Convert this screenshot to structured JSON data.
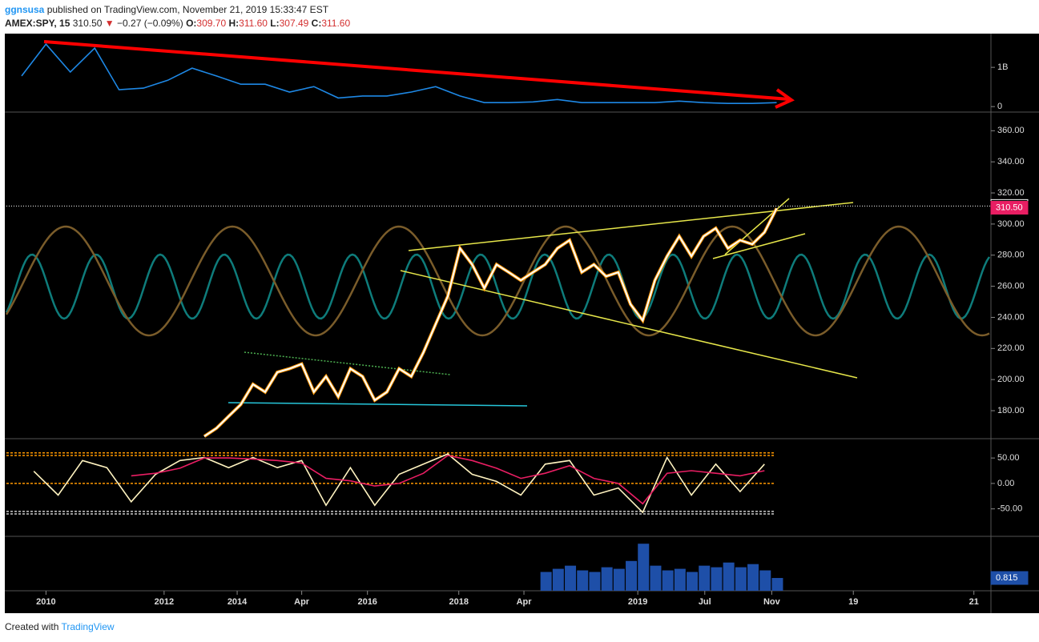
{
  "header": {
    "user": "ggnsusa",
    "published": "published on TradingView.com, November 21, 2019 15:33:47 EST",
    "symbol": "AMEX:SPY, 15",
    "last": "310.50",
    "arrow": "▼",
    "change": "−0.27 (−0.09%)",
    "o_label": "O:",
    "o": "309.70",
    "h_label": "H:",
    "h": "311.60",
    "l_label": "L:",
    "l": "307.49",
    "c_label": "C:",
    "c": "311.60"
  },
  "footer": {
    "created": "Created with",
    "brand": "TradingView"
  },
  "chart_data": [
    {
      "type": "line",
      "series": [
        {
          "color": "#ffffff",
          "values": [
            163.5,
            168.7,
            176.4,
            184,
            197,
            192,
            204.7,
            207,
            210,
            192,
            202,
            189,
            207,
            202,
            186.7,
            192,
            207,
            202,
            217.5,
            235.6,
            253.6,
            284.4,
            274,
            258.7,
            274,
            269,
            263.8,
            269,
            274,
            284.4,
            289.6,
            269,
            274,
            266.4,
            269,
            248.4,
            238,
            263.8,
            279.3,
            292.1,
            279.3,
            292.1,
            297.3,
            284.4,
            289.6,
            287,
            294.7,
            310.1
          ]
        }
      ],
      "ylim": [
        162,
        372
      ],
      "yticks": [
        {
          "value": 180,
          "label": "180.00"
        },
        {
          "value": 200,
          "label": "200.00"
        },
        {
          "value": 220,
          "label": "220.00"
        },
        {
          "value": 240,
          "label": "240.00"
        },
        {
          "value": 260,
          "label": "260.00"
        },
        {
          "value": 280,
          "label": "280.00"
        },
        {
          "value": 300,
          "label": "300.00"
        },
        {
          "value": 320,
          "label": "320.00"
        },
        {
          "value": 340,
          "label": "340.00"
        },
        {
          "value": 360,
          "label": "360.00"
        }
      ],
      "xlim": [
        -16.25,
        64.6
      ],
      "xticks": [
        {
          "value": -13,
          "label": "2010"
        },
        {
          "value": -3.3,
          "label": "2012"
        },
        {
          "value": 2.7,
          "label": "2014"
        },
        {
          "value": 8,
          "label": "Apr"
        },
        {
          "value": 13.4,
          "label": "2016"
        },
        {
          "value": 20.9,
          "label": "2018"
        },
        {
          "value": 26.25,
          "label": "Apr"
        },
        {
          "value": 35.6,
          "label": "2019"
        },
        {
          "value": 41.1,
          "label": "Jul"
        },
        {
          "value": 46.6,
          "label": "Nov"
        },
        {
          "value": 53.3,
          "label": "19"
        },
        {
          "value": 63.2,
          "label": "21"
        }
      ],
      "price_tags": [
        {
          "value": 311.6,
          "label": "311.60",
          "color": "#ffffff"
        },
        {
          "value": 310.5,
          "label": "310.50",
          "color": "#e91e63"
        }
      ]
    },
    {
      "type": "line",
      "x": [
        -15,
        -13,
        -11,
        -9,
        -7,
        -5,
        -3,
        -1,
        1,
        3,
        5,
        7,
        9,
        11,
        13,
        15,
        17,
        19,
        21,
        23,
        25,
        27,
        29,
        31,
        33,
        35,
        37,
        39,
        41,
        43,
        45,
        47
      ],
      "series": [
        {
          "color": "#1e88e5",
          "values": [
            780000000,
            1590000000,
            880000000,
            1490000000,
            430000000,
            470000000,
            670000000,
            980000000,
            780000000,
            570000000,
            570000000,
            370000000,
            510000000,
            220000000,
            270000000,
            270000000,
            370000000,
            510000000,
            270000000,
            100000000,
            100000000,
            120000000,
            180000000,
            100000000,
            100000000,
            100000000,
            100000000,
            140000000,
            100000000,
            80000000,
            80000000,
            100000000
          ]
        }
      ],
      "ylim": [
        -140000000,
        1860000000
      ],
      "yticks": [
        {
          "value": 0,
          "label": "0"
        },
        {
          "value": 1000000000,
          "label": "1B"
        }
      ]
    },
    {
      "type": "line",
      "x": [
        -14,
        -12,
        -10,
        -8,
        -6,
        -4,
        -2,
        0,
        2,
        4,
        6,
        8,
        10,
        12,
        14,
        16,
        18,
        20,
        22,
        24,
        26,
        28,
        30,
        32,
        34,
        36,
        38,
        40,
        42,
        44,
        46
      ],
      "series": [
        {
          "color": "#fff3c0",
          "values": [
            24,
            -23,
            45,
            31,
            -36,
            18,
            45,
            51,
            31,
            51,
            31,
            45,
            -43,
            31,
            -43,
            18,
            38,
            58,
            18,
            4,
            -23,
            38,
            45,
            -23,
            -9,
            -57,
            51,
            -23,
            38,
            -16,
            38
          ]
        },
        {
          "color": "#e91e63",
          "values": [
            null,
            null,
            null,
            null,
            15,
            20,
            30,
            50,
            50,
            48,
            45,
            40,
            10,
            5,
            -5,
            0,
            20,
            55,
            45,
            30,
            10,
            20,
            35,
            10,
            0,
            -40,
            20,
            25,
            20,
            15,
            25
          ]
        }
      ],
      "ylim": [
        -104,
        88
      ],
      "yticks": [
        {
          "value": 50,
          "label": "50.00"
        },
        {
          "value": 0,
          "label": "0.00"
        },
        {
          "value": -50,
          "label": "-50.00"
        }
      ],
      "levels": [
        {
          "value": 60,
          "color": "#ff9800"
        },
        {
          "value": 55,
          "color": "#ff9800"
        },
        {
          "value": 0,
          "color": "#ff9800"
        },
        {
          "value": -55,
          "color": "#cccccc"
        },
        {
          "value": -60,
          "color": "#cccccc"
        }
      ]
    },
    {
      "type": "bar",
      "x": [
        28,
        29,
        30,
        31,
        32,
        33,
        34,
        35,
        36,
        37,
        38,
        39,
        40,
        41,
        42,
        43,
        44,
        45,
        46,
        47
      ],
      "color": "#1e4fa8",
      "values": [
        1.2,
        1.4,
        1.6,
        1.3,
        1.2,
        1.5,
        1.4,
        1.9,
        3.0,
        1.6,
        1.3,
        1.4,
        1.2,
        1.6,
        1.5,
        1.8,
        1.5,
        1.7,
        1.3,
        0.815
      ],
      "ylim": [
        0,
        3.47
      ],
      "price_tags": [
        {
          "value": 0.815,
          "label": "0.815",
          "color": "#1e4fa8"
        }
      ]
    }
  ]
}
